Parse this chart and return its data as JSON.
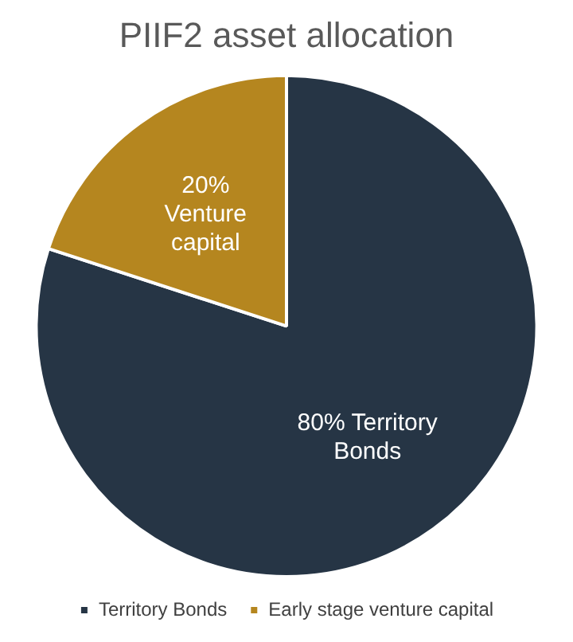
{
  "chart_data": {
    "type": "pie",
    "title": "PIIF2 asset allocation",
    "categories": [
      "Territory Bonds",
      "Early stage venture capital"
    ],
    "values": [
      80,
      20
    ],
    "colors": [
      "#263545",
      "#b5861f"
    ],
    "value_labels": [
      "80% Territory\nBonds",
      "20%\nVenture\ncapital"
    ],
    "legend": "bottom"
  }
}
